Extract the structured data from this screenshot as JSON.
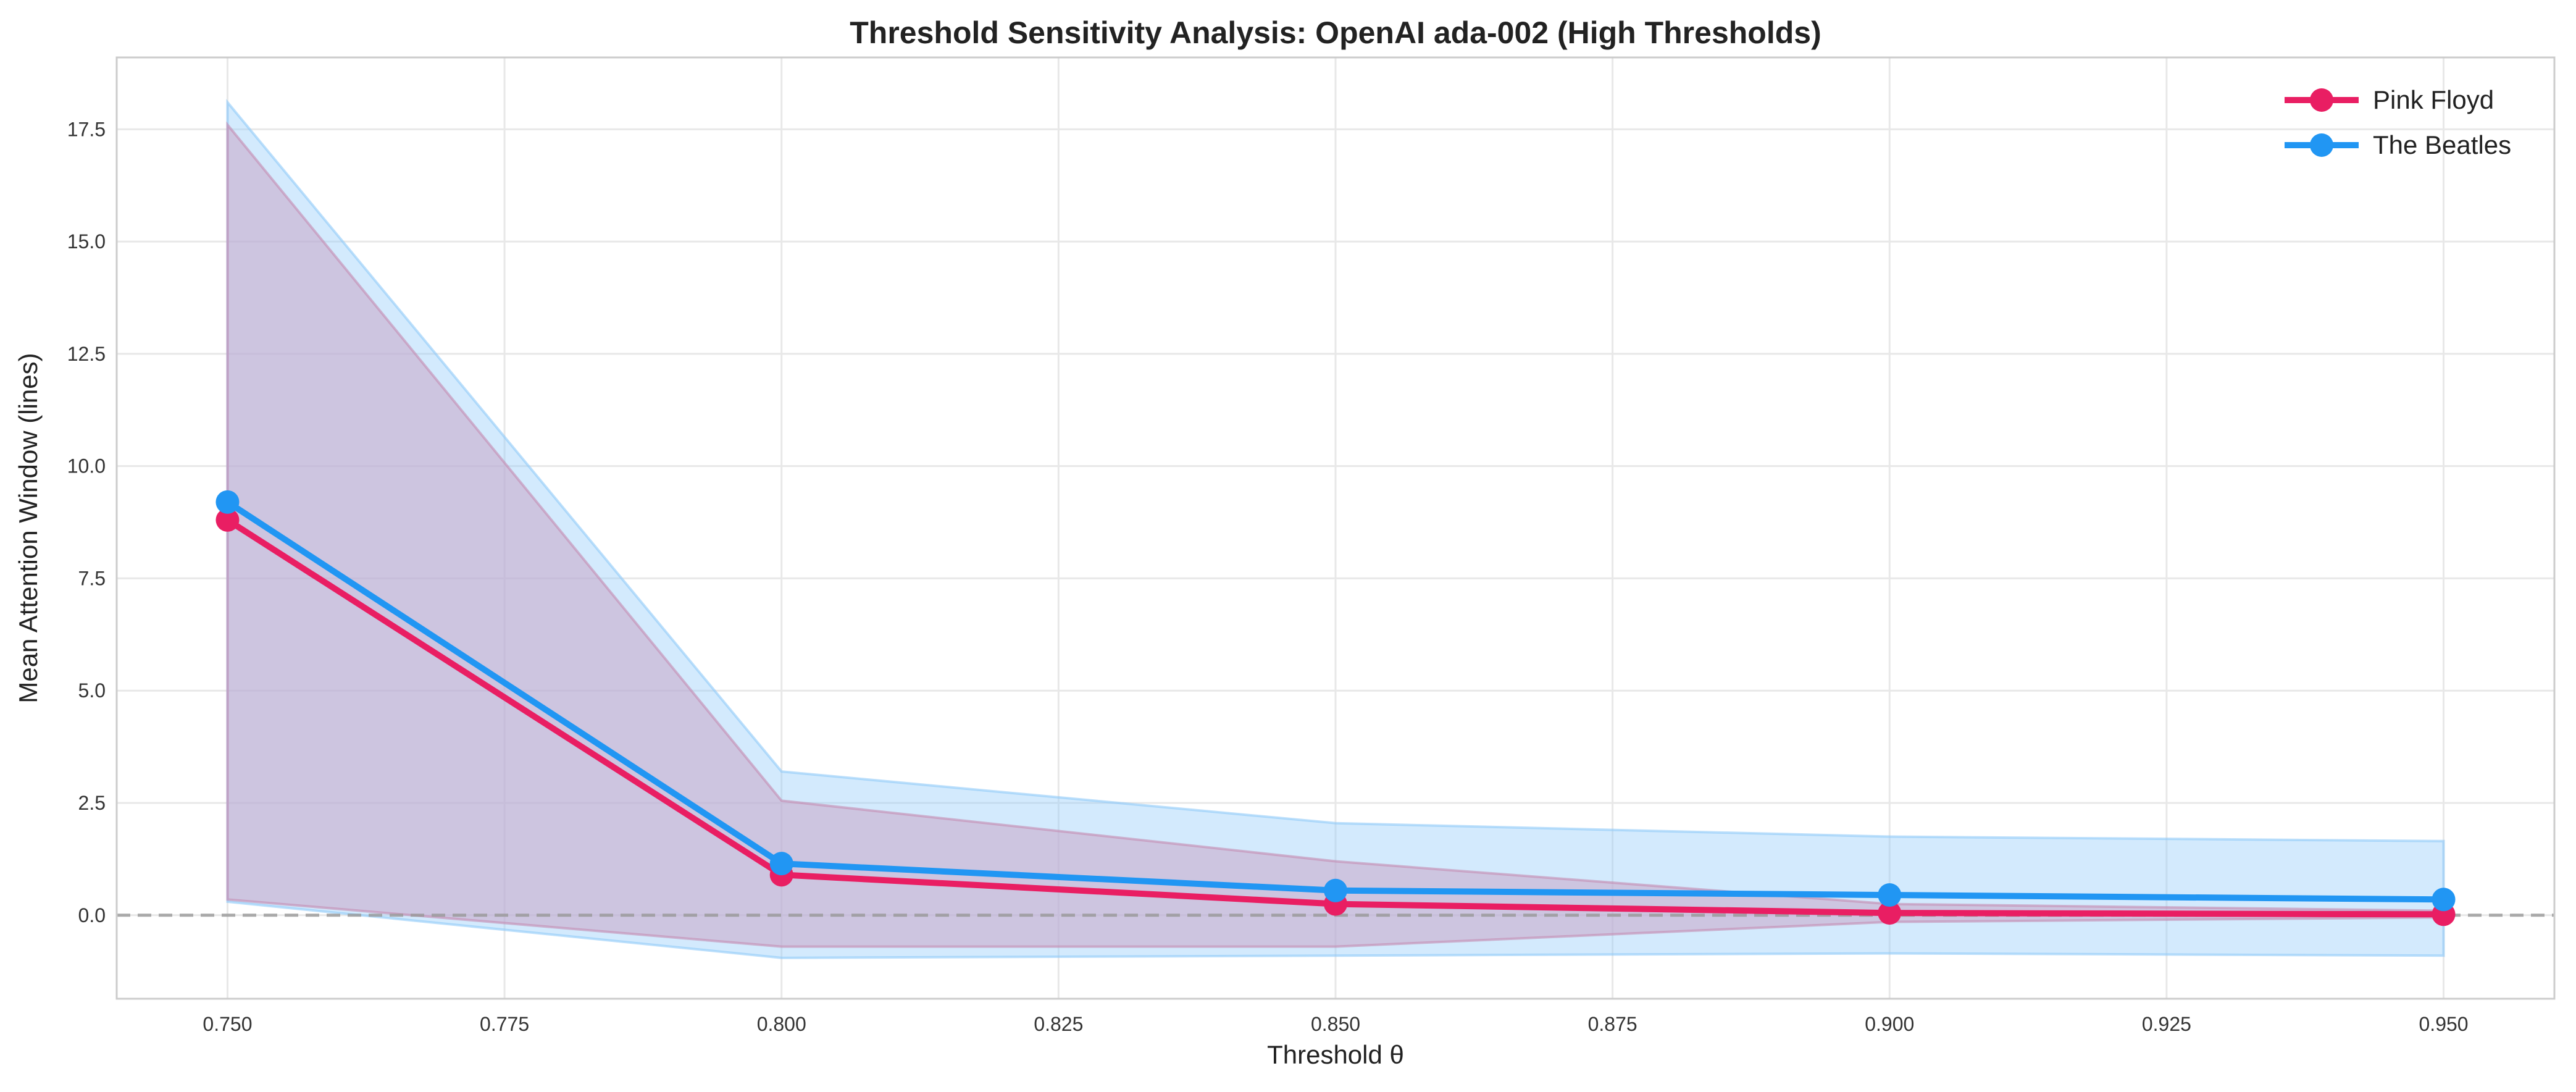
{
  "chart_data": {
    "type": "line",
    "title": "Threshold Sensitivity Analysis: OpenAI ada-002 (High Thresholds)",
    "xlabel": "Threshold θ",
    "ylabel": "Mean Attention Window (lines)",
    "x": [
      0.75,
      0.8,
      0.85,
      0.9,
      0.95
    ],
    "xlim": [
      0.74,
      0.96
    ],
    "ylim": [
      -1.86,
      19.1
    ],
    "xticks": [
      "0.750",
      "0.775",
      "0.800",
      "0.825",
      "0.850",
      "0.875",
      "0.900",
      "0.925",
      "0.950"
    ],
    "yticks": [
      "0.0",
      "2.5",
      "5.0",
      "7.5",
      "10.0",
      "12.5",
      "15.0",
      "17.5"
    ],
    "grid": true,
    "legend_position": "top-right",
    "reference_line": {
      "y": 0,
      "style": "dashed",
      "color": "#999999"
    },
    "series": [
      {
        "name": "Pink Floyd",
        "color": "#E91E63",
        "values": [
          8.8,
          0.9,
          0.25,
          0.05,
          0.02
        ],
        "upper": [
          17.6,
          2.55,
          1.2,
          0.25,
          0.1
        ],
        "lower": [
          0.35,
          -0.7,
          -0.7,
          -0.15,
          -0.05
        ]
      },
      {
        "name": "The Beatles",
        "color": "#2196F3",
        "values": [
          9.2,
          1.15,
          0.55,
          0.45,
          0.35
        ],
        "upper": [
          18.1,
          3.2,
          2.05,
          1.75,
          1.65
        ],
        "lower": [
          0.3,
          -0.95,
          -0.9,
          -0.85,
          -0.9
        ]
      }
    ]
  }
}
